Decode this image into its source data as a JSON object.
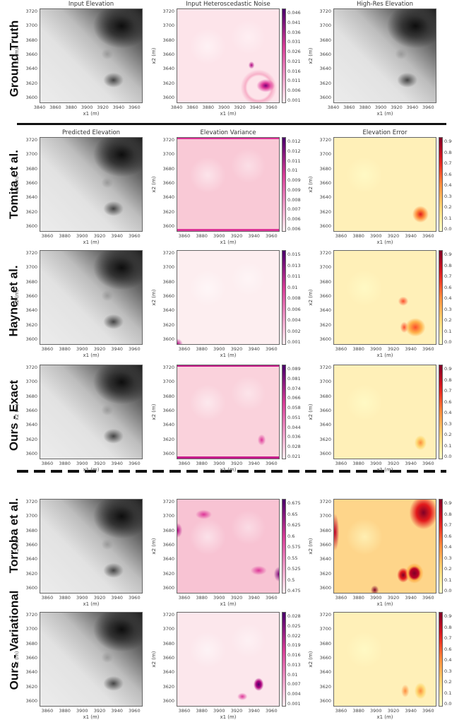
{
  "figure": {
    "rows": [
      {
        "label": "Ground Truth"
      },
      {
        "label": "Tomita et al."
      },
      {
        "label": "Hayner et al."
      },
      {
        "label": "Ours - Exact"
      },
      {
        "label": "Torroba et al."
      },
      {
        "label": "Ours - Variational"
      }
    ],
    "dividers": [
      {
        "style": "solid",
        "after_row": "Ground Truth"
      },
      {
        "style": "dashed",
        "after_row": "Ours - Exact"
      }
    ]
  },
  "chart_data": [
    {
      "type": "heatmap",
      "row": "Ground Truth",
      "title": "Input Elevation",
      "xlabel": "x1 (m)",
      "ylabel": "x2 (m)",
      "xticks": [
        "3840",
        "3860",
        "3880",
        "3900",
        "3920",
        "3940",
        "3960"
      ],
      "yticks": [
        "3720",
        "3700",
        "3680",
        "3660",
        "3640",
        "3620",
        "3600"
      ],
      "colormap": "gray",
      "colorbar": null
    },
    {
      "type": "heatmap",
      "row": "Ground Truth",
      "title": "Input Heteroscedastic Noise",
      "xlabel": "x1 (m)",
      "ylabel": "x2 (m)",
      "xticks": [
        "3840",
        "3860",
        "3880",
        "3900",
        "3920",
        "3940",
        "3960"
      ],
      "yticks": [
        "3720",
        "3700",
        "3680",
        "3660",
        "3640",
        "3620",
        "3600"
      ],
      "colormap": "RdPu",
      "colorbar": [
        "0.046",
        "0.041",
        "0.036",
        "0.031",
        "0.026",
        "0.021",
        "0.016",
        "0.011",
        "0.006",
        "0.001"
      ]
    },
    {
      "type": "heatmap",
      "row": "Ground Truth",
      "title": "High-Res Elevation",
      "xlabel": "x1 (m)",
      "ylabel": "x2 (m)",
      "xticks": [
        "3840",
        "3860",
        "3880",
        "3900",
        "3920",
        "3940",
        "3960"
      ],
      "yticks": [
        "3720",
        "3700",
        "3680",
        "3660",
        "3640",
        "3620",
        "3600"
      ],
      "colormap": "gray",
      "colorbar": null
    },
    {
      "type": "heatmap",
      "row": "Tomita et al.",
      "title": "Predicted Elevation",
      "xlabel": "x1 (m)",
      "ylabel": "x2 (m)",
      "xticks": [
        "3860",
        "3880",
        "3900",
        "3920",
        "3940",
        "3960"
      ],
      "yticks": [
        "3720",
        "3700",
        "3680",
        "3660",
        "3640",
        "3620",
        "3600"
      ],
      "colormap": "gray",
      "colorbar": null
    },
    {
      "type": "heatmap",
      "row": "Tomita et al.",
      "title": "Elevation Variance",
      "xlabel": "x1 (m)",
      "ylabel": "x2 (m)",
      "xticks": [
        "3860",
        "3880",
        "3900",
        "3920",
        "3940",
        "3960"
      ],
      "yticks": [
        "3720",
        "3700",
        "3680",
        "3660",
        "3640",
        "3620",
        "3600"
      ],
      "colormap": "RdPu",
      "colorbar": [
        "0.012",
        "0.012",
        "0.011",
        "0.01",
        "0.009",
        "0.009",
        "0.008",
        "0.007",
        "0.006",
        "0.006"
      ]
    },
    {
      "type": "heatmap",
      "row": "Tomita et al.",
      "title": "Elevation Error",
      "xlabel": "x1 (m)",
      "ylabel": "x2 (m)",
      "xticks": [
        "3860",
        "3880",
        "3900",
        "3920",
        "3940",
        "3960"
      ],
      "yticks": [
        "3720",
        "3700",
        "3680",
        "3660",
        "3640",
        "3620",
        "3600"
      ],
      "colormap": "YlOrRd",
      "colorbar": [
        "0.96",
        "0.84",
        "0.72",
        "0.6",
        "0.48",
        "0.36",
        "0.24",
        "0.12",
        "0.0"
      ]
    },
    {
      "type": "heatmap",
      "row": "Hayner et al.",
      "title": "",
      "xlabel": "x1 (m)",
      "ylabel": "x2 (m)",
      "xticks": [
        "3860",
        "3880",
        "3900",
        "3920",
        "3940",
        "3960"
      ],
      "yticks": [
        "3720",
        "3700",
        "3680",
        "3660",
        "3640",
        "3620",
        "3600"
      ],
      "colormap": "gray",
      "colorbar": null
    },
    {
      "type": "heatmap",
      "row": "Hayner et al.",
      "title": "",
      "xlabel": "x1 (m)",
      "ylabel": "x2 (m)",
      "xticks": [
        "3860",
        "3880",
        "3900",
        "3920",
        "3940",
        "3960"
      ],
      "yticks": [
        "3720",
        "3700",
        "3680",
        "3660",
        "3640",
        "3620",
        "3600"
      ],
      "colormap": "RdPu",
      "colorbar": [
        "0.015",
        "0.013",
        "0.011",
        "0.01",
        "0.008",
        "0.006",
        "0.004",
        "0.002",
        "0.001"
      ]
    },
    {
      "type": "heatmap",
      "row": "Hayner et al.",
      "title": "",
      "xlabel": "x1 (m)",
      "ylabel": "x2 (m)",
      "xticks": [
        "3860",
        "3880",
        "3900",
        "3920",
        "3940",
        "3960"
      ],
      "yticks": [
        "3720",
        "3700",
        "3680",
        "3660",
        "3640",
        "3620",
        "3600"
      ],
      "colormap": "YlOrRd",
      "colorbar": [
        "0.96",
        "0.84",
        "0.72",
        "0.6",
        "0.48",
        "0.36",
        "0.24",
        "0.12",
        "0.0"
      ]
    },
    {
      "type": "heatmap",
      "row": "Ours - Exact",
      "title": "",
      "xlabel": "x1 (m)",
      "ylabel": "x2 (m)",
      "xticks": [
        "3860",
        "3880",
        "3900",
        "3920",
        "3940",
        "3960"
      ],
      "yticks": [
        "3720",
        "3700",
        "3680",
        "3660",
        "3640",
        "3620",
        "3600"
      ],
      "colormap": "gray",
      "colorbar": null
    },
    {
      "type": "heatmap",
      "row": "Ours - Exact",
      "title": "",
      "xlabel": "x1 (m)",
      "ylabel": "x2 (m)",
      "xticks": [
        "3860",
        "3880",
        "3900",
        "3920",
        "3940",
        "3960"
      ],
      "yticks": [
        "3720",
        "3700",
        "3680",
        "3660",
        "3640",
        "3620",
        "3600"
      ],
      "colormap": "RdPu",
      "colorbar": [
        "0.089",
        "0.081",
        "0.074",
        "0.066",
        "0.058",
        "0.051",
        "0.044",
        "0.036",
        "0.028",
        "0.021"
      ]
    },
    {
      "type": "heatmap",
      "row": "Ours - Exact",
      "title": "",
      "xlabel": "x1 (m)",
      "ylabel": "x2 (m)",
      "xticks": [
        "3860",
        "3880",
        "3900",
        "3920",
        "3940",
        "3960"
      ],
      "yticks": [
        "3720",
        "3700",
        "3680",
        "3660",
        "3640",
        "3620",
        "3600"
      ],
      "colormap": "YlOrRd",
      "colorbar": [
        "0.96",
        "0.84",
        "0.72",
        "0.6",
        "0.48",
        "0.36",
        "0.24",
        "0.12",
        "0.0"
      ]
    },
    {
      "type": "heatmap",
      "row": "Torroba et al.",
      "title": "",
      "xlabel": "x1 (m)",
      "ylabel": "x2 (m)",
      "xticks": [
        "3860",
        "3880",
        "3900",
        "3920",
        "3940",
        "3960"
      ],
      "yticks": [
        "3720",
        "3700",
        "3680",
        "3660",
        "3640",
        "3620",
        "3600"
      ],
      "colormap": "gray",
      "colorbar": null
    },
    {
      "type": "heatmap",
      "row": "Torroba et al.",
      "title": "",
      "xlabel": "x1 (m)",
      "ylabel": "x2 (m)",
      "xticks": [
        "3860",
        "3880",
        "3900",
        "3920",
        "3940",
        "3960"
      ],
      "yticks": [
        "3720",
        "3700",
        "3680",
        "3660",
        "3640",
        "3620",
        "3600"
      ],
      "colormap": "RdPu",
      "colorbar": [
        "0.675",
        "0.65",
        "0.625",
        "0.6",
        "0.575",
        "0.55",
        "0.525",
        "0.5",
        "0.475"
      ]
    },
    {
      "type": "heatmap",
      "row": "Torroba et al.",
      "title": "",
      "xlabel": "x1 (m)",
      "ylabel": "x2 (m)",
      "xticks": [
        "3860",
        "3880",
        "3900",
        "3920",
        "3940",
        "3960"
      ],
      "yticks": [
        "3720",
        "3700",
        "3680",
        "3660",
        "3640",
        "3620",
        "3600"
      ],
      "colormap": "YlOrRd",
      "colorbar": [
        "0.96",
        "0.84",
        "0.72",
        "0.6",
        "0.48",
        "0.36",
        "0.24",
        "0.12",
        "0.0"
      ]
    },
    {
      "type": "heatmap",
      "row": "Ours - Variational",
      "title": "",
      "xlabel": "x1 (m)",
      "ylabel": "x2 (m)",
      "xticks": [
        "3860",
        "3880",
        "3900",
        "3920",
        "3940",
        "3960"
      ],
      "yticks": [
        "3720",
        "3700",
        "3680",
        "3660",
        "3640",
        "3620",
        "3600"
      ],
      "colormap": "gray",
      "colorbar": null
    },
    {
      "type": "heatmap",
      "row": "Ours - Variational",
      "title": "",
      "xlabel": "x1 (m)",
      "ylabel": "x2 (m)",
      "xticks": [
        "3860",
        "3880",
        "3900",
        "3920",
        "3940",
        "3960"
      ],
      "yticks": [
        "3720",
        "3700",
        "3680",
        "3660",
        "3640",
        "3620",
        "3600"
      ],
      "colormap": "RdPu",
      "colorbar": [
        "0.028",
        "0.025",
        "0.022",
        "0.019",
        "0.016",
        "0.013",
        "0.01",
        "0.007",
        "0.004",
        "0.001"
      ]
    },
    {
      "type": "heatmap",
      "row": "Ours - Variational",
      "title": "",
      "xlabel": "x1 (m)",
      "ylabel": "x2 (m)",
      "xticks": [
        "3860",
        "3880",
        "3900",
        "3920",
        "3940",
        "3960"
      ],
      "yticks": [
        "3720",
        "3700",
        "3680",
        "3660",
        "3640",
        "3620",
        "3600"
      ],
      "colormap": "YlOrRd",
      "colorbar": [
        "0.96",
        "0.84",
        "0.72",
        "0.6",
        "0.48",
        "0.36",
        "0.24",
        "0.12",
        "0.0"
      ]
    }
  ],
  "colors": {
    "gray_dark": "#111111",
    "gray_light": "#efefef",
    "rdpu_low": "#fdeef0",
    "rdpu_high": "#49006a",
    "ylorrd_low": "#ffffcc",
    "ylorrd_high": "#800026"
  }
}
